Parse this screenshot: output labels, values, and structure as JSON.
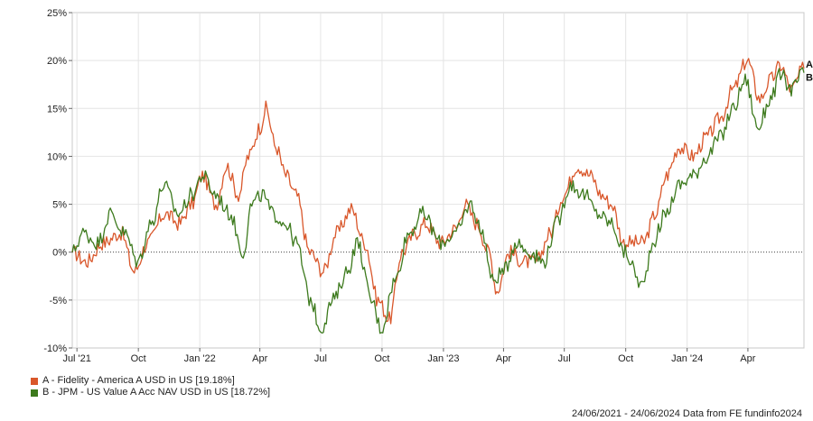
{
  "chart_data": {
    "type": "line",
    "ylim": [
      -10,
      25
    ],
    "yticks": [
      -10,
      -5,
      0,
      5,
      10,
      15,
      20,
      25
    ],
    "ytick_labels": [
      "-10%",
      "-5%",
      "0%",
      "5%",
      "10%",
      "15%",
      "20%",
      "25%"
    ],
    "xlim": [
      "2021-06-24",
      "2024-06-24"
    ],
    "xticks": [
      {
        "date": "2021-07-01",
        "label": "Jul '21"
      },
      {
        "date": "2021-10-01",
        "label": "Oct"
      },
      {
        "date": "2022-01-01",
        "label": "Jan '22"
      },
      {
        "date": "2022-04-01",
        "label": "Apr"
      },
      {
        "date": "2022-07-01",
        "label": "Jul"
      },
      {
        "date": "2022-10-01",
        "label": "Oct"
      },
      {
        "date": "2023-01-01",
        "label": "Jan '23"
      },
      {
        "date": "2023-04-01",
        "label": "Apr"
      },
      {
        "date": "2023-07-01",
        "label": "Jul"
      },
      {
        "date": "2023-10-01",
        "label": "Oct"
      },
      {
        "date": "2024-01-01",
        "label": "Jan '24"
      },
      {
        "date": "2024-04-01",
        "label": "Apr"
      }
    ],
    "grid": true,
    "zero_line": "dotted",
    "legend_position": "bottom-left",
    "series": [
      {
        "name": "A - Fidelity - America A USD in US [19.18%]",
        "end_label": "A",
        "color": "#d9572b",
        "points": [
          [
            "2021-06-24",
            0
          ],
          [
            "2021-07-15",
            -1
          ],
          [
            "2021-08-10",
            1
          ],
          [
            "2021-09-05",
            2
          ],
          [
            "2021-09-25",
            -2
          ],
          [
            "2021-10-15",
            1
          ],
          [
            "2021-11-10",
            4
          ],
          [
            "2021-12-01",
            3
          ],
          [
            "2021-12-20",
            5
          ],
          [
            "2022-01-05",
            8
          ],
          [
            "2022-01-25",
            5
          ],
          [
            "2022-02-10",
            9
          ],
          [
            "2022-02-28",
            6
          ],
          [
            "2022-03-15",
            10
          ],
          [
            "2022-04-01",
            13
          ],
          [
            "2022-04-10",
            15
          ],
          [
            "2022-04-25",
            11
          ],
          [
            "2022-05-10",
            8
          ],
          [
            "2022-05-25",
            6
          ],
          [
            "2022-06-15",
            0
          ],
          [
            "2022-07-05",
            -2
          ],
          [
            "2022-07-25",
            2
          ],
          [
            "2022-08-16",
            4.5
          ],
          [
            "2022-09-05",
            1
          ],
          [
            "2022-09-25",
            -5
          ],
          [
            "2022-10-12",
            -7
          ],
          [
            "2022-10-31",
            0
          ],
          [
            "2022-11-20",
            2
          ],
          [
            "2022-12-05",
            3
          ],
          [
            "2022-12-28",
            1
          ],
          [
            "2023-01-20",
            2.5
          ],
          [
            "2023-02-02",
            5
          ],
          [
            "2023-02-20",
            3
          ],
          [
            "2023-03-10",
            0
          ],
          [
            "2023-03-22",
            -4
          ],
          [
            "2023-04-10",
            0
          ],
          [
            "2023-05-01",
            -1
          ],
          [
            "2023-05-20",
            -1
          ],
          [
            "2023-06-10",
            2
          ],
          [
            "2023-06-30",
            6
          ],
          [
            "2023-07-20",
            9
          ],
          [
            "2023-08-10",
            8
          ],
          [
            "2023-08-25",
            6
          ],
          [
            "2023-09-10",
            5
          ],
          [
            "2023-09-28",
            1
          ],
          [
            "2023-10-27",
            1
          ],
          [
            "2023-11-15",
            4
          ],
          [
            "2023-12-01",
            8
          ],
          [
            "2023-12-20",
            11
          ],
          [
            "2024-01-10",
            10
          ],
          [
            "2024-01-30",
            12
          ],
          [
            "2024-02-20",
            14
          ],
          [
            "2024-03-10",
            17
          ],
          [
            "2024-03-31",
            20
          ],
          [
            "2024-04-19",
            16
          ],
          [
            "2024-05-05",
            18
          ],
          [
            "2024-05-20",
            19.5
          ],
          [
            "2024-06-05",
            17
          ],
          [
            "2024-06-24",
            19.18
          ]
        ]
      },
      {
        "name": "B - JPM - US Value A Acc NAV USD in US [18.72%]",
        "end_label": "B",
        "color": "#3d7a1d",
        "points": [
          [
            "2021-06-24",
            0
          ],
          [
            "2021-07-10",
            2
          ],
          [
            "2021-08-01",
            1
          ],
          [
            "2021-08-20",
            4
          ],
          [
            "2021-09-10",
            2
          ],
          [
            "2021-09-30",
            -1
          ],
          [
            "2021-10-20",
            3
          ],
          [
            "2021-11-08",
            7
          ],
          [
            "2021-11-30",
            4
          ],
          [
            "2021-12-20",
            6
          ],
          [
            "2022-01-05",
            8
          ],
          [
            "2022-01-25",
            6
          ],
          [
            "2022-02-15",
            4
          ],
          [
            "2022-03-07",
            0
          ],
          [
            "2022-03-20",
            5
          ],
          [
            "2022-04-05",
            6
          ],
          [
            "2022-04-20",
            4
          ],
          [
            "2022-05-10",
            3
          ],
          [
            "2022-05-25",
            1
          ],
          [
            "2022-06-16",
            -5
          ],
          [
            "2022-07-01",
            -8
          ],
          [
            "2022-07-20",
            -5
          ],
          [
            "2022-08-10",
            -2
          ],
          [
            "2022-08-25",
            1
          ],
          [
            "2022-09-15",
            -5
          ],
          [
            "2022-09-30",
            -8
          ],
          [
            "2022-10-20",
            -3
          ],
          [
            "2022-11-10",
            2
          ],
          [
            "2022-12-01",
            4
          ],
          [
            "2022-12-28",
            1
          ],
          [
            "2023-01-20",
            2
          ],
          [
            "2023-02-10",
            5
          ],
          [
            "2023-03-01",
            2
          ],
          [
            "2023-03-15",
            -3
          ],
          [
            "2023-04-01",
            -2
          ],
          [
            "2023-04-20",
            1
          ],
          [
            "2023-05-10",
            0
          ],
          [
            "2023-05-31",
            -1
          ],
          [
            "2023-06-20",
            3
          ],
          [
            "2023-07-10",
            7
          ],
          [
            "2023-07-31",
            6
          ],
          [
            "2023-08-20",
            4
          ],
          [
            "2023-09-10",
            3
          ],
          [
            "2023-09-28",
            0
          ],
          [
            "2023-10-27",
            -3.5
          ],
          [
            "2023-11-10",
            1
          ],
          [
            "2023-11-30",
            4
          ],
          [
            "2023-12-20",
            7
          ],
          [
            "2024-01-10",
            8
          ],
          [
            "2024-01-30",
            10
          ],
          [
            "2024-02-20",
            12
          ],
          [
            "2024-03-10",
            15
          ],
          [
            "2024-03-28",
            18
          ],
          [
            "2024-04-16",
            13
          ],
          [
            "2024-05-05",
            16
          ],
          [
            "2024-05-20",
            18.5
          ],
          [
            "2024-06-05",
            17
          ],
          [
            "2024-06-24",
            18.72
          ]
        ]
      }
    ]
  },
  "footer": {
    "text": "24/06/2021 - 24/06/2024 Data from FE fundinfo2024"
  }
}
